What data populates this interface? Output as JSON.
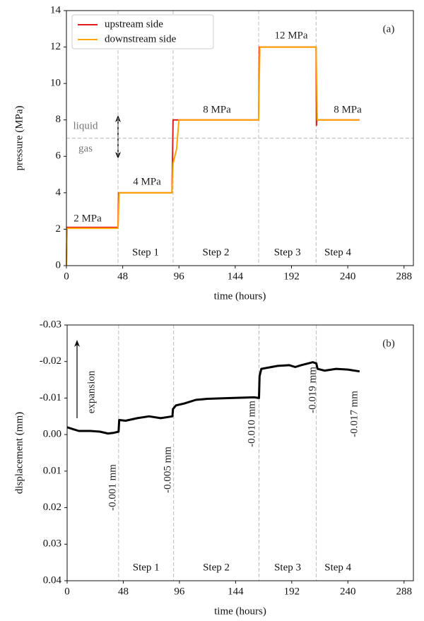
{
  "chart_data": [
    {
      "type": "line",
      "xlabel": "time (hours)",
      "ylabel": "pressure (MPa)",
      "xlim": [
        0,
        296
      ],
      "xticks": [
        0,
        48,
        96,
        144,
        192,
        240,
        288
      ],
      "ylim": [
        0,
        14
      ],
      "yticks": [
        0,
        2,
        4,
        6,
        8,
        10,
        12,
        14
      ],
      "legend": "upper left",
      "series": [
        {
          "name": "upstream side",
          "color": "#e41a1c",
          "x": [
            0,
            0.5,
            44,
            44.5,
            90,
            90.5,
            91,
            164,
            164.5,
            213,
            213.3,
            213.6,
            250
          ],
          "values": [
            0,
            2.1,
            2.1,
            4.0,
            4.0,
            5.8,
            8.0,
            8.0,
            12.0,
            12.0,
            7.7,
            8.0,
            8.0
          ]
        },
        {
          "name": "downstream side",
          "color": "#ffa500",
          "x": [
            0,
            0.5,
            44,
            45,
            90,
            91,
            94,
            96,
            164,
            165,
            213,
            214,
            250
          ],
          "values": [
            0,
            2.05,
            2.05,
            4.0,
            4.0,
            5.6,
            6.4,
            8.0,
            8.0,
            12.0,
            12.0,
            8.0,
            8.0
          ]
        }
      ],
      "vlines": [
        44,
        91,
        164,
        213
      ],
      "hline": 7,
      "steps": [
        "Step 1",
        "Step 2",
        "Step 3",
        "Step 4"
      ],
      "annotations": [
        "2 MPa",
        "4 MPa",
        "8 MPa",
        "12 MPa",
        "8 MPa",
        "liquid",
        "gas",
        "(a)"
      ]
    },
    {
      "type": "line",
      "xlabel": "time (hours)",
      "ylabel": "displacement (mm)",
      "xlim": [
        0,
        296
      ],
      "xticks": [
        0,
        48,
        96,
        144,
        192,
        240,
        288
      ],
      "ylim": [
        0.04,
        -0.03
      ],
      "yticks": [
        -0.03,
        -0.02,
        -0.01,
        {
          "value": 0,
          "label": "0.00"
        },
        0.01,
        0.02,
        0.03,
        0.04
      ],
      "series": [
        {
          "name": null,
          "color": "#000000",
          "x": [
            0,
            5,
            10,
            20,
            28,
            35,
            40,
            44,
            44.5,
            50,
            60,
            70,
            80,
            90,
            90.5,
            93,
            100,
            110,
            120,
            140,
            160,
            164,
            164.5,
            166,
            180,
            190,
            195,
            200,
            210,
            213,
            214,
            220,
            230,
            240,
            250
          ],
          "values": [
            -0.002,
            -0.0015,
            -0.001,
            -0.001,
            -0.0008,
            -0.0003,
            -0.0005,
            -0.0008,
            -0.004,
            -0.0038,
            -0.0045,
            -0.005,
            -0.0045,
            -0.005,
            -0.007,
            -0.008,
            -0.0085,
            -0.0095,
            -0.0098,
            -0.01,
            -0.0102,
            -0.01,
            -0.016,
            -0.018,
            -0.0188,
            -0.019,
            -0.0185,
            -0.019,
            -0.0198,
            -0.0195,
            -0.018,
            -0.0175,
            -0.018,
            -0.0178,
            -0.0173
          ]
        }
      ],
      "vlines": [
        44,
        91,
        164,
        213
      ],
      "steps": [
        "Step 1",
        "Step 2",
        "Step 3",
        "Step 4"
      ],
      "annotations": [
        "(b)",
        "expansion",
        "-0.001 mm",
        "-0.005 mm",
        "-0.010 mm",
        "-0.019 mm",
        "-0.017 mm"
      ]
    }
  ]
}
